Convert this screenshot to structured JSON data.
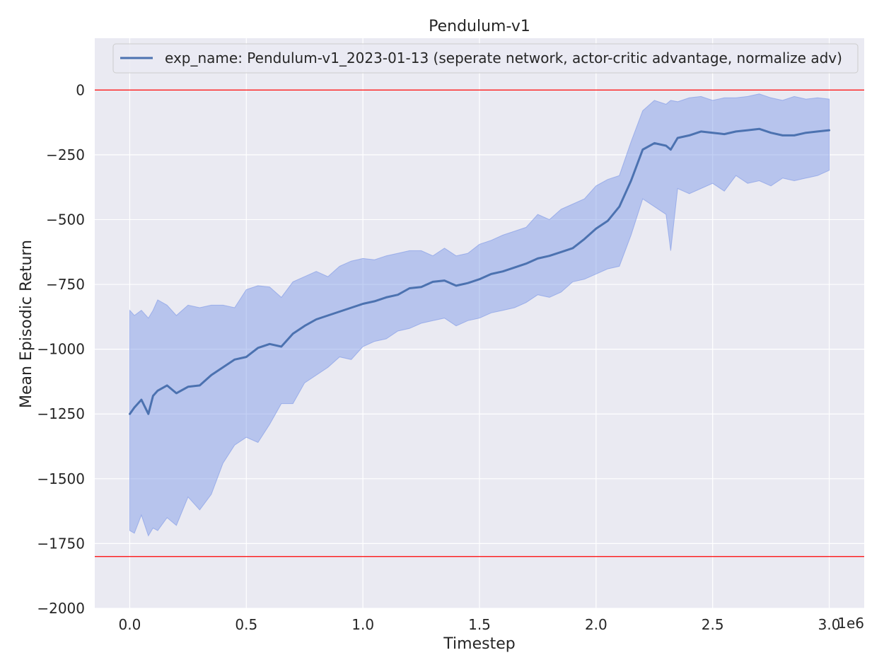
{
  "chart_data": {
    "type": "line",
    "title": "Pendulum-v1",
    "xlabel": "Timestep",
    "ylabel": "Mean Episodic Return",
    "x_offset_label": "1e6",
    "xlim": [
      -0.15,
      3.15
    ],
    "ylim": [
      -2000,
      200
    ],
    "x_ticks": [
      0.0,
      0.5,
      1.0,
      1.5,
      2.0,
      2.5,
      3.0
    ],
    "x_tick_labels": [
      "0.0",
      "0.5",
      "1.0",
      "1.5",
      "2.0",
      "2.5",
      "3.0"
    ],
    "y_ticks": [
      0,
      -250,
      -500,
      -750,
      -1000,
      -1250,
      -1500,
      -1750,
      -2000
    ],
    "y_tick_labels": [
      "0",
      "−250",
      "−500",
      "−750",
      "−1000",
      "−1250",
      "−1500",
      "−1750",
      "−2000"
    ],
    "grid": true,
    "legend_position": "top",
    "reference_lines": [
      0,
      -1800
    ],
    "colors": {
      "line": "#4c72b0",
      "band": "#7b96e6",
      "reference": "#ff0000",
      "axes_bg": "#eaeaf2",
      "grid": "#ffffff"
    },
    "series": [
      {
        "name": "exp_name: Pendulum-v1_2023-01-13 (seperate network, actor-critic advantage, normalize adv)",
        "x": [
          0.0,
          0.02,
          0.05,
          0.08,
          0.1,
          0.12,
          0.16,
          0.2,
          0.25,
          0.3,
          0.35,
          0.4,
          0.45,
          0.5,
          0.55,
          0.6,
          0.65,
          0.7,
          0.75,
          0.8,
          0.85,
          0.9,
          0.95,
          1.0,
          1.05,
          1.1,
          1.15,
          1.2,
          1.25,
          1.3,
          1.35,
          1.4,
          1.45,
          1.5,
          1.55,
          1.6,
          1.65,
          1.7,
          1.75,
          1.8,
          1.85,
          1.9,
          1.95,
          2.0,
          2.05,
          2.1,
          2.15,
          2.2,
          2.25,
          2.3,
          2.32,
          2.35,
          2.4,
          2.45,
          2.5,
          2.55,
          2.6,
          2.65,
          2.7,
          2.75,
          2.8,
          2.85,
          2.9,
          2.95,
          3.0
        ],
        "y": [
          -1250,
          -1225,
          -1195,
          -1250,
          -1180,
          -1160,
          -1140,
          -1170,
          -1145,
          -1140,
          -1100,
          -1070,
          -1040,
          -1030,
          -995,
          -980,
          -990,
          -940,
          -910,
          -885,
          -870,
          -855,
          -840,
          -825,
          -815,
          -800,
          -790,
          -765,
          -760,
          -740,
          -735,
          -755,
          -745,
          -730,
          -710,
          -700,
          -685,
          -670,
          -650,
          -640,
          -625,
          -610,
          -575,
          -535,
          -505,
          -450,
          -350,
          -230,
          -205,
          -215,
          -230,
          -185,
          -175,
          -160,
          -165,
          -170,
          -160,
          -155,
          -150,
          -165,
          -175,
          -175,
          -165,
          -160,
          -155
        ],
        "upper": [
          -850,
          -870,
          -850,
          -880,
          -850,
          -810,
          -830,
          -870,
          -830,
          -840,
          -830,
          -830,
          -840,
          -770,
          -755,
          -760,
          -800,
          -740,
          -720,
          -700,
          -720,
          -680,
          -660,
          -650,
          -655,
          -640,
          -630,
          -620,
          -620,
          -640,
          -610,
          -640,
          -630,
          -595,
          -580,
          -560,
          -545,
          -530,
          -480,
          -500,
          -460,
          -440,
          -420,
          -370,
          -345,
          -330,
          -200,
          -80,
          -40,
          -55,
          -40,
          -45,
          -30,
          -25,
          -40,
          -30,
          -30,
          -25,
          -15,
          -30,
          -40,
          -25,
          -35,
          -30,
          -35
        ],
        "lower": [
          -1700,
          -1710,
          -1640,
          -1720,
          -1690,
          -1700,
          -1650,
          -1680,
          -1570,
          -1620,
          -1560,
          -1440,
          -1370,
          -1340,
          -1360,
          -1290,
          -1210,
          -1210,
          -1130,
          -1100,
          -1070,
          -1030,
          -1040,
          -990,
          -970,
          -960,
          -930,
          -920,
          -900,
          -890,
          -880,
          -910,
          -890,
          -880,
          -860,
          -850,
          -840,
          -820,
          -790,
          -800,
          -780,
          -740,
          -730,
          -710,
          -690,
          -680,
          -560,
          -420,
          -450,
          -480,
          -620,
          -380,
          -400,
          -380,
          -360,
          -390,
          -330,
          -360,
          -350,
          -370,
          -340,
          -350,
          -340,
          -330,
          -310
        ]
      }
    ]
  }
}
